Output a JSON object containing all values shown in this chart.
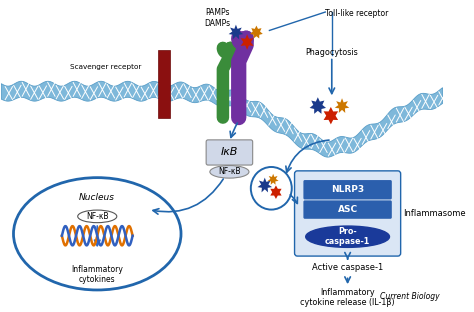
{
  "watermark": "Current Biology",
  "bg_color": "#ffffff",
  "mid_blue": "#2166ac",
  "light_blue": "#7eb8da",
  "box_blue": "#2b5fad",
  "dark_blue": "#1a3a6b",
  "inflammasome_bg": "#dae6f5",
  "labels": {
    "pampdamp": "PAMPs\nDAMPs",
    "toll_like": "Toll-like receptor",
    "scavenger": "Scavenger receptor",
    "phagocytosis": "Phagocytosis",
    "ikb": "IκB",
    "nfkb_box": "NF-κB",
    "nucleus": "Nucleus",
    "nfkb_nucleus": "NF-κB",
    "inflammatory_cytokines": "Inflammatory\ncytokines",
    "inflammasome": "Inflammasome",
    "nlrp3": "NLRP3",
    "asc": "ASC",
    "procaspase": "Pro-\ncaspase-1",
    "active_caspase": "Active caspase-1",
    "il1b": "Inflammatory\ncytokine release (IL-1β)"
  }
}
